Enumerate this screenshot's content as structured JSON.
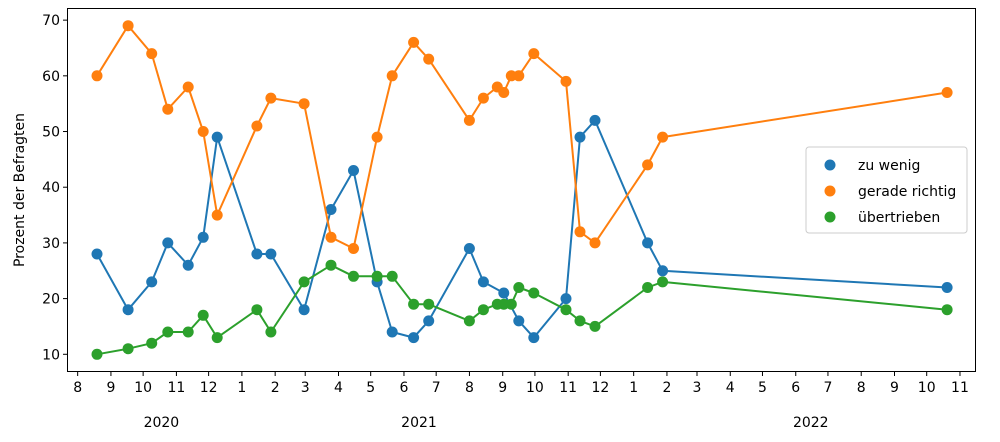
{
  "chart_data": {
    "type": "line",
    "ylabel": "Prozent der Befragten",
    "xlabel": "",
    "ylim": [
      7,
      72
    ],
    "xlim": [
      "2020-07-23",
      "2022-11-15"
    ],
    "yticks": [
      10,
      20,
      30,
      40,
      50,
      60,
      70
    ],
    "xticks": [
      {
        "date": "2020-08-01",
        "label": "8"
      },
      {
        "date": "2020-09-01",
        "label": "9"
      },
      {
        "date": "2020-10-01",
        "label": "10"
      },
      {
        "date": "2020-11-01",
        "label": "11"
      },
      {
        "date": "2020-12-01",
        "label": "12"
      },
      {
        "date": "2021-01-01",
        "label": "1"
      },
      {
        "date": "2021-02-01",
        "label": "2"
      },
      {
        "date": "2021-03-01",
        "label": "3"
      },
      {
        "date": "2021-04-01",
        "label": "4"
      },
      {
        "date": "2021-05-01",
        "label": "5"
      },
      {
        "date": "2021-06-01",
        "label": "6"
      },
      {
        "date": "2021-07-01",
        "label": "7"
      },
      {
        "date": "2021-08-01",
        "label": "8"
      },
      {
        "date": "2021-09-01",
        "label": "9"
      },
      {
        "date": "2021-10-01",
        "label": "10"
      },
      {
        "date": "2021-11-01",
        "label": "11"
      },
      {
        "date": "2021-12-01",
        "label": "12"
      },
      {
        "date": "2022-01-01",
        "label": "1"
      },
      {
        "date": "2022-02-01",
        "label": "2"
      },
      {
        "date": "2022-03-01",
        "label": "3"
      },
      {
        "date": "2022-04-01",
        "label": "4"
      },
      {
        "date": "2022-05-01",
        "label": "5"
      },
      {
        "date": "2022-06-01",
        "label": "6"
      },
      {
        "date": "2022-07-01",
        "label": "7"
      },
      {
        "date": "2022-08-01",
        "label": "8"
      },
      {
        "date": "2022-09-01",
        "label": "9"
      },
      {
        "date": "2022-10-01",
        "label": "10"
      },
      {
        "date": "2022-11-01",
        "label": "11"
      }
    ],
    "year_labels": [
      {
        "date": "2020-10-18",
        "label": "2020"
      },
      {
        "date": "2021-06-15",
        "label": "2021"
      },
      {
        "date": "2022-06-15",
        "label": "2022"
      }
    ],
    "legend_position": "center-right",
    "grid": false,
    "series": [
      {
        "name": "zu wenig",
        "color": "#1f77b4",
        "points": [
          [
            "2020-08-19",
            28
          ],
          [
            "2020-09-17",
            18
          ],
          [
            "2020-10-09",
            23
          ],
          [
            "2020-10-24",
            30
          ],
          [
            "2020-11-12",
            26
          ],
          [
            "2020-11-26",
            31
          ],
          [
            "2020-12-09",
            49
          ],
          [
            "2021-01-15",
            28
          ],
          [
            "2021-01-28",
            28
          ],
          [
            "2021-02-28",
            18
          ],
          [
            "2021-03-25",
            36
          ],
          [
            "2021-04-15",
            43
          ],
          [
            "2021-05-07",
            23
          ],
          [
            "2021-05-21",
            14
          ],
          [
            "2021-06-10",
            13
          ],
          [
            "2021-06-24",
            16
          ],
          [
            "2021-08-01",
            29
          ],
          [
            "2021-08-14",
            23
          ],
          [
            "2021-09-02",
            21
          ],
          [
            "2021-09-16",
            16
          ],
          [
            "2021-09-30",
            13
          ],
          [
            "2021-10-30",
            20
          ],
          [
            "2021-11-12",
            49
          ],
          [
            "2021-11-26",
            52
          ],
          [
            "2022-01-14",
            30
          ],
          [
            "2022-01-28",
            25
          ],
          [
            "2022-10-20",
            22
          ]
        ]
      },
      {
        "name": "gerade richtig",
        "color": "#ff7f0e",
        "points": [
          [
            "2020-08-19",
            60
          ],
          [
            "2020-09-17",
            69
          ],
          [
            "2020-10-09",
            64
          ],
          [
            "2020-10-24",
            54
          ],
          [
            "2020-11-12",
            58
          ],
          [
            "2020-11-26",
            50
          ],
          [
            "2020-12-09",
            35
          ],
          [
            "2021-01-15",
            51
          ],
          [
            "2021-01-28",
            56
          ],
          [
            "2021-02-28",
            55
          ],
          [
            "2021-03-25",
            31
          ],
          [
            "2021-04-15",
            29
          ],
          [
            "2021-05-07",
            49
          ],
          [
            "2021-05-21",
            60
          ],
          [
            "2021-06-10",
            66
          ],
          [
            "2021-06-24",
            63
          ],
          [
            "2021-08-01",
            52
          ],
          [
            "2021-08-14",
            56
          ],
          [
            "2021-08-27",
            58
          ],
          [
            "2021-09-02",
            57
          ],
          [
            "2021-09-09",
            60
          ],
          [
            "2021-09-16",
            60
          ],
          [
            "2021-09-30",
            64
          ],
          [
            "2021-10-30",
            59
          ],
          [
            "2021-11-12",
            32
          ],
          [
            "2021-11-26",
            30
          ],
          [
            "2022-01-14",
            44
          ],
          [
            "2022-01-28",
            49
          ],
          [
            "2022-10-20",
            57
          ]
        ]
      },
      {
        "name": "übertrieben",
        "color": "#2ca02c",
        "points": [
          [
            "2020-08-19",
            10
          ],
          [
            "2020-09-17",
            11
          ],
          [
            "2020-10-09",
            12
          ],
          [
            "2020-10-24",
            14
          ],
          [
            "2020-11-12",
            14
          ],
          [
            "2020-11-26",
            17
          ],
          [
            "2020-12-09",
            13
          ],
          [
            "2021-01-15",
            18
          ],
          [
            "2021-01-28",
            14
          ],
          [
            "2021-02-28",
            23
          ],
          [
            "2021-03-25",
            26
          ],
          [
            "2021-04-15",
            24
          ],
          [
            "2021-05-07",
            24
          ],
          [
            "2021-05-21",
            24
          ],
          [
            "2021-06-10",
            19
          ],
          [
            "2021-06-24",
            19
          ],
          [
            "2021-08-01",
            16
          ],
          [
            "2021-08-14",
            18
          ],
          [
            "2021-08-27",
            19
          ],
          [
            "2021-09-02",
            19
          ],
          [
            "2021-09-09",
            19
          ],
          [
            "2021-09-16",
            22
          ],
          [
            "2021-09-30",
            21
          ],
          [
            "2021-10-30",
            18
          ],
          [
            "2021-11-12",
            16
          ],
          [
            "2021-11-26",
            15
          ],
          [
            "2022-01-14",
            22
          ],
          [
            "2022-01-28",
            23
          ],
          [
            "2022-10-20",
            18
          ]
        ]
      }
    ]
  }
}
